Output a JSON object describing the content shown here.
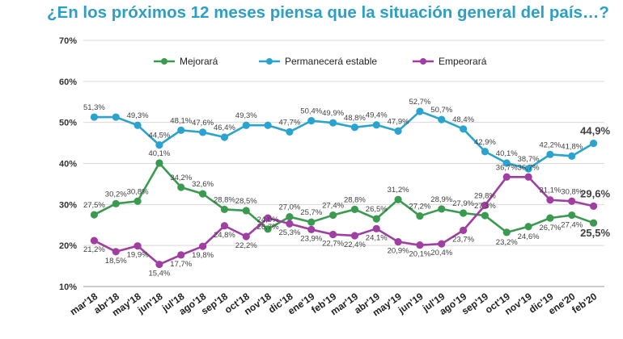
{
  "title": "¿En los próximos 12 meses piensa que la situación general del país…?",
  "colors": {
    "mejorara": "#3a9a50",
    "estable": "#2aa3cf",
    "empeorara": "#a03ea2"
  },
  "chart_data": {
    "type": "line",
    "title": "¿En los próximos 12 meses piensa que la situación general del país…?",
    "categories": [
      "mar'18",
      "abr'18",
      "may'18",
      "jun'18",
      "jul'18",
      "ago'18",
      "sep'18",
      "oct'18",
      "nov'18",
      "dic'18",
      "ene'19",
      "feb'19",
      "mar'19",
      "abr'19",
      "may'19",
      "jun'19",
      "jul'19",
      "ago'19",
      "sep'19",
      "oct'19",
      "nov'19",
      "dic'19",
      "ene'20",
      "feb'20"
    ],
    "ylim": [
      10,
      70
    ],
    "yticks": [
      "10%",
      "20%",
      "30%",
      "40%",
      "50%",
      "60%",
      "70%"
    ],
    "grid": true,
    "legend_position": "top",
    "series": [
      {
        "name": "Mejorará",
        "values": [
          27.5,
          30.2,
          30.8,
          40.1,
          34.2,
          32.6,
          28.8,
          28.5,
          24.0,
          27.0,
          25.7,
          27.4,
          28.8,
          26.5,
          31.2,
          27.2,
          28.9,
          27.9,
          27.3,
          23.2,
          24.6,
          26.7,
          27.4,
          25.5
        ],
        "labels": [
          "27,5%",
          "30,2%",
          "30,8%",
          "40,1%",
          "34,2%",
          "32,6%",
          "28,8%",
          "28,5%",
          "24,0%",
          "27,0%",
          "25,7%",
          "27,4%",
          "28,8%",
          "26,5%",
          "31,2%",
          "27,2%",
          "28,9%",
          "27,9%",
          "27,3%",
          "23,2%",
          "24,6%",
          "26,7%",
          "27,4%",
          "25,5%"
        ]
      },
      {
        "name": "Permanecerá estable",
        "values": [
          51.3,
          51.3,
          49.3,
          44.5,
          48.1,
          47.6,
          46.4,
          49.3,
          49.3,
          47.7,
          50.4,
          49.9,
          48.8,
          49.4,
          47.9,
          52.7,
          50.7,
          48.4,
          42.9,
          40.1,
          38.7,
          42.2,
          41.8,
          44.9
        ],
        "labels": [
          "51,3%",
          "",
          "49,3%",
          "44,5%",
          "48,1%",
          "47,6%",
          "46,4%",
          "49,3%",
          "",
          "47,7%",
          "50,4%",
          "49,9%",
          "48,8%",
          "49,4%",
          "47,9%",
          "52,7%",
          "50,7%",
          "48,4%",
          "42,9%",
          "40,1%",
          "38,7%",
          "42,2%",
          "41,8%",
          "44,9%"
        ]
      },
      {
        "name": "Empeorará",
        "values": [
          21.2,
          18.5,
          19.9,
          15.4,
          17.7,
          19.8,
          24.8,
          22.2,
          26.7,
          25.3,
          23.9,
          22.7,
          22.4,
          24.1,
          20.9,
          20.1,
          20.4,
          23.7,
          29.8,
          36.7,
          36.7,
          31.1,
          30.8,
          29.6
        ],
        "labels": [
          "21,2%",
          "18,5%",
          "19,9%",
          "15,4%",
          "17,7%",
          "19,8%",
          "24,8%",
          "22,2%",
          "26,7%",
          "25,3%",
          "23,9%",
          "22,7%",
          "22,4%",
          "24,1%",
          "20,9%",
          "20,1%",
          "20,4%",
          "23,7%",
          "29,8%",
          "36,7%",
          "36,7%",
          "31,1%",
          "30,8%",
          "29,6%"
        ]
      }
    ]
  }
}
